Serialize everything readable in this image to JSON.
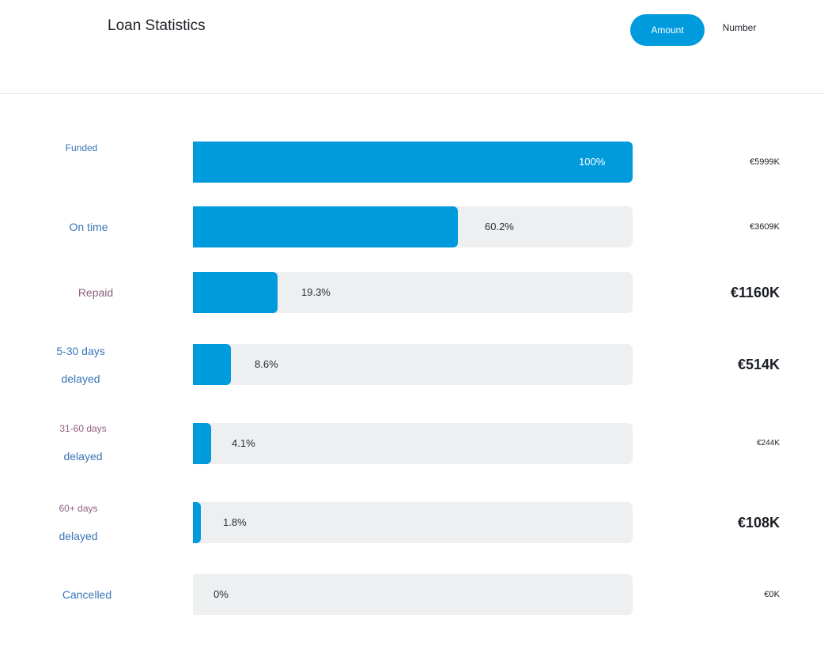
{
  "header": {
    "title": "Loan Statistics",
    "toggle": {
      "amount_label": "Amount",
      "number_label": "Number",
      "selected": "Amount"
    }
  },
  "colors": {
    "accent": "#009bdd",
    "track": "#eeeff1",
    "label_blue": "#3a75b8",
    "label_mauve": "#8d5f7e"
  },
  "rows": [
    {
      "label_lines": [
        "Funded"
      ],
      "percent_text": "100%",
      "percent": 100,
      "amount": "€5999K"
    },
    {
      "label_lines": [
        "On time"
      ],
      "percent_text": "60.2%",
      "percent": 60.2,
      "amount": "€3609K"
    },
    {
      "label_lines": [
        "Repaid"
      ],
      "percent_text": "19.3%",
      "percent": 19.3,
      "amount": "€1160K"
    },
    {
      "label_lines": [
        "5-30 days",
        "delayed"
      ],
      "percent_text": "8.6%",
      "percent": 8.6,
      "amount": "€514K"
    },
    {
      "label_lines": [
        "31-60 days",
        "delayed"
      ],
      "percent_text": "4.1%",
      "percent": 4.1,
      "amount": "€244K"
    },
    {
      "label_lines": [
        "60+ days",
        "delayed"
      ],
      "percent_text": "1.8%",
      "percent": 1.8,
      "amount": "€108K"
    },
    {
      "label_lines": [
        "Cancelled"
      ],
      "percent_text": "0%",
      "percent": 0,
      "amount": "€0K"
    }
  ]
}
